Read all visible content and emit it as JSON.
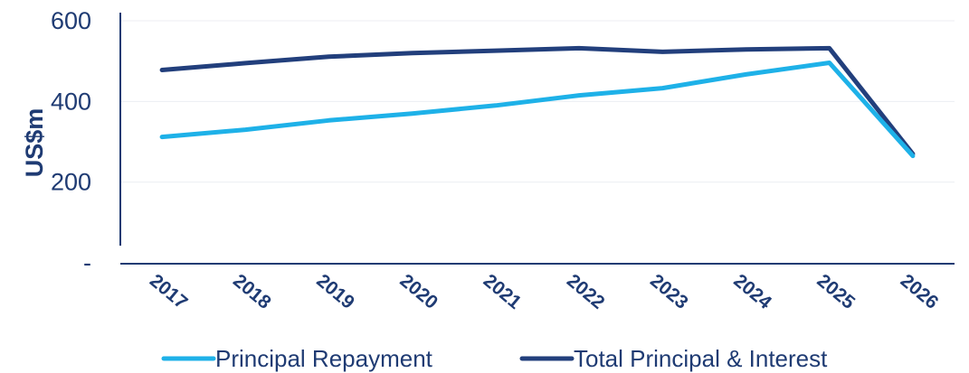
{
  "chart_data": {
    "type": "line",
    "categories": [
      "2017",
      "2018",
      "2019",
      "2020",
      "2021",
      "2022",
      "2023",
      "2024",
      "2025",
      "2026"
    ],
    "series": [
      {
        "name": "Principal Repayment",
        "color": "#1EB1E8",
        "values": [
          312,
          330,
          353,
          370,
          390,
          415,
          433,
          467,
          496,
          265
        ]
      },
      {
        "name": "Total Principal & Interest",
        "color": "#223F7C",
        "values": [
          478,
          495,
          511,
          520,
          526,
          532,
          523,
          529,
          532,
          270
        ]
      }
    ],
    "ylabel": "US$m",
    "ylim": [
      0,
      600
    ],
    "yticks": [
      {
        "value": 0,
        "label": "-"
      },
      {
        "value": 200,
        "label": "200"
      },
      {
        "value": 400,
        "label": "400"
      },
      {
        "value": 600,
        "label": "600"
      }
    ],
    "grid": true,
    "legend_position": "bottom"
  }
}
